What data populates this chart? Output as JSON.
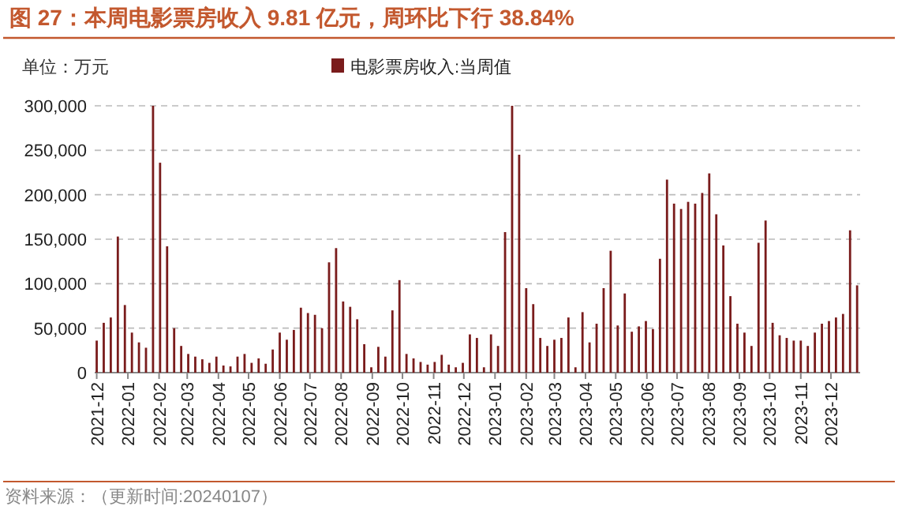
{
  "chart_data": {
    "type": "bar",
    "title": "图 27：本周电影票房收入 9.81 亿元，周环比下行 38.84%",
    "annotations": [
      "单位：万元",
      "资料来源：（更新时间:20240107）"
    ],
    "x": [
      "2021-12-01",
      "2021-12-08",
      "2021-12-15",
      "2021-12-22",
      "2021-12-29",
      "2022-01-05",
      "2022-01-12",
      "2022-01-19",
      "2022-01-26",
      "2022-02-02",
      "2022-02-09",
      "2022-02-16",
      "2022-02-23",
      "2022-03-02",
      "2022-03-09",
      "2022-03-16",
      "2022-03-23",
      "2022-03-30",
      "2022-04-06",
      "2022-04-13",
      "2022-04-20",
      "2022-04-27",
      "2022-05-04",
      "2022-05-11",
      "2022-05-18",
      "2022-05-25",
      "2022-06-01",
      "2022-06-08",
      "2022-06-15",
      "2022-06-22",
      "2022-06-29",
      "2022-07-06",
      "2022-07-13",
      "2022-07-20",
      "2022-07-27",
      "2022-08-03",
      "2022-08-10",
      "2022-08-17",
      "2022-08-24",
      "2022-08-31",
      "2022-09-07",
      "2022-09-14",
      "2022-09-21",
      "2022-09-28",
      "2022-10-05",
      "2022-10-12",
      "2022-10-19",
      "2022-10-26",
      "2022-11-02",
      "2022-11-09",
      "2022-11-16",
      "2022-11-23",
      "2022-11-30",
      "2022-12-07",
      "2022-12-14",
      "2022-12-21",
      "2022-12-28",
      "2023-01-04",
      "2023-01-11",
      "2023-01-18",
      "2023-01-25",
      "2023-02-01",
      "2023-02-08",
      "2023-02-15",
      "2023-02-22",
      "2023-03-01",
      "2023-03-08",
      "2023-03-15",
      "2023-03-22",
      "2023-03-29",
      "2023-04-05",
      "2023-04-12",
      "2023-04-19",
      "2023-04-26",
      "2023-05-03",
      "2023-05-10",
      "2023-05-17",
      "2023-05-24",
      "2023-05-31",
      "2023-06-07",
      "2023-06-14",
      "2023-06-21",
      "2023-06-28",
      "2023-07-05",
      "2023-07-12",
      "2023-07-19",
      "2023-07-26",
      "2023-08-02",
      "2023-08-09",
      "2023-08-16",
      "2023-08-23",
      "2023-08-30",
      "2023-09-06",
      "2023-09-13",
      "2023-09-20",
      "2023-09-27",
      "2023-10-04",
      "2023-10-11",
      "2023-10-18",
      "2023-10-25",
      "2023-11-01",
      "2023-11-08",
      "2023-11-15",
      "2023-11-22",
      "2023-11-29",
      "2023-12-06",
      "2023-12-13",
      "2023-12-20",
      "2023-12-27"
    ],
    "series": [
      {
        "name": "电影票房收入:当周值",
        "color": "#7a1c1c",
        "values": [
          36000,
          56000,
          62000,
          153000,
          76000,
          45000,
          34000,
          28000,
          300000,
          236000,
          142000,
          50000,
          30000,
          21000,
          18000,
          15000,
          11000,
          18000,
          8000,
          7000,
          18000,
          21000,
          11000,
          16000,
          10000,
          26000,
          45000,
          37000,
          48000,
          73000,
          67000,
          65000,
          50000,
          124000,
          140000,
          80000,
          74000,
          60000,
          32000,
          6000,
          29000,
          18000,
          70000,
          104000,
          21000,
          16000,
          12000,
          9000,
          12000,
          20000,
          9000,
          6000,
          11000,
          43000,
          39000,
          6000,
          43000,
          30000,
          158000,
          300000,
          245000,
          95000,
          77000,
          39000,
          30000,
          37000,
          39000,
          62000,
          6000,
          68000,
          34000,
          55000,
          95000,
          137000,
          53000,
          89000,
          46000,
          52000,
          58000,
          49000,
          128000,
          217000,
          190000,
          184000,
          192000,
          190000,
          202000,
          224000,
          178000,
          143000,
          86000,
          55000,
          45000,
          30000,
          146000,
          171000,
          56000,
          42000,
          39000,
          36000,
          36000,
          30000,
          45000,
          55000,
          58000,
          62000,
          66000,
          160000,
          98100
        ]
      }
    ],
    "xlim": [
      "2021-11-29",
      "2023-12-30"
    ],
    "xticks": [
      {
        "value": "2021-12-01",
        "label": "2021-12"
      },
      {
        "value": "2022-01-01",
        "label": "2022-01"
      },
      {
        "value": "2022-02-01",
        "label": "2022-02"
      },
      {
        "value": "2022-03-01",
        "label": "2022-03"
      },
      {
        "value": "2022-04-01",
        "label": "2022-04"
      },
      {
        "value": "2022-05-01",
        "label": "2022-05"
      },
      {
        "value": "2022-06-01",
        "label": "2022-06"
      },
      {
        "value": "2022-07-01",
        "label": "2022-07"
      },
      {
        "value": "2022-08-01",
        "label": "2022-08"
      },
      {
        "value": "2022-09-01",
        "label": "2022-09"
      },
      {
        "value": "2022-10-01",
        "label": "2022-10"
      },
      {
        "value": "2022-11-01",
        "label": "2022-11"
      },
      {
        "value": "2022-12-01",
        "label": "2022-12"
      },
      {
        "value": "2023-01-01",
        "label": "2023-01"
      },
      {
        "value": "2023-02-01",
        "label": "2023-02"
      },
      {
        "value": "2023-03-01",
        "label": "2023-03"
      },
      {
        "value": "2023-04-01",
        "label": "2023-04"
      },
      {
        "value": "2023-05-01",
        "label": "2023-05"
      },
      {
        "value": "2023-06-01",
        "label": "2023-06"
      },
      {
        "value": "2023-07-01",
        "label": "2023-07"
      },
      {
        "value": "2023-08-01",
        "label": "2023-08"
      },
      {
        "value": "2023-09-01",
        "label": "2023-09"
      },
      {
        "value": "2023-10-01",
        "label": "2023-10"
      },
      {
        "value": "2023-11-01",
        "label": "2023-11"
      },
      {
        "value": "2023-12-01",
        "label": "2023-12"
      }
    ],
    "ylim": [
      0,
      300000
    ],
    "yticks": [
      0,
      {
        "value": 50000,
        "label": "50,000"
      },
      {
        "value": 100000,
        "label": "100,000"
      },
      {
        "value": 150000,
        "label": "150,000"
      },
      {
        "value": 200000,
        "label": "200,000"
      },
      {
        "value": 250000,
        "label": "250,000"
      },
      {
        "value": 300000,
        "label": "300,000"
      }
    ],
    "grid": "y",
    "legend": "top"
  }
}
